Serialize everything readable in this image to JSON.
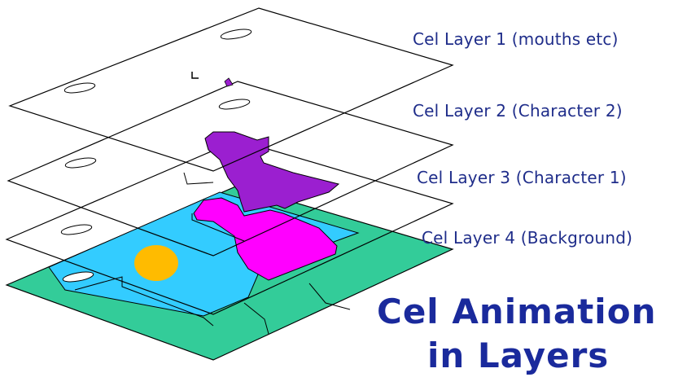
{
  "diagram": {
    "layers": [
      {
        "label": "Cel Layer 1 (mouths etc)"
      },
      {
        "label": "Cel Layer 2 (Character 2)"
      },
      {
        "label": "Cel Layer 3 (Character 1)"
      },
      {
        "label": "Cel Layer 4 (Background)"
      }
    ],
    "title_line1": "Cel Animation",
    "title_line2": "in Layers"
  },
  "colors": {
    "outline": "#000000",
    "character2": "#9b1fd0",
    "character1": "#ff00ff",
    "background_sky": "#33ccff",
    "background_ground": "#33cc99",
    "sun": "#ffbb00",
    "label_text": "#1f2d8a"
  },
  "icons": [
    "registration-hole-icon"
  ]
}
